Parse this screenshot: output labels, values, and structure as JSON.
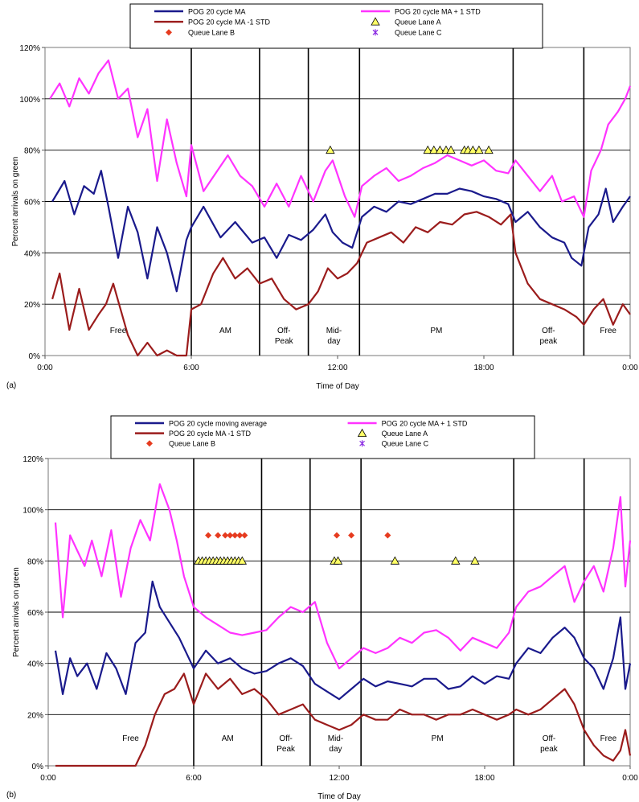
{
  "chart_data": [
    {
      "panel_label": "(a)",
      "type": "line",
      "xlabel": "Time of Day",
      "ylabel": "Percent arrivals on green",
      "xlim": [
        0,
        24
      ],
      "ylim": [
        0,
        120
      ],
      "x_ticks": [
        "0:00",
        "6:00",
        "12:00",
        "18:00",
        "0:00"
      ],
      "y_ticks": [
        "0%",
        "20%",
        "40%",
        "60%",
        "80%",
        "100%",
        "120%"
      ],
      "grid": "horizontal",
      "legend": {
        "position": "top",
        "entries": [
          {
            "label": "POG 20 cycle MA",
            "series": "ma"
          },
          {
            "label": "POG 20 cycle MA + 1 STD",
            "series": "plus"
          },
          {
            "label": "POG 20 cycle MA -1 STD",
            "series": "minus"
          },
          {
            "label": "Queue Lane A",
            "series": "qA"
          },
          {
            "label": "Queue Lane B",
            "series": "qB"
          },
          {
            "label": "Queue Lane C",
            "series": "qC"
          }
        ]
      },
      "period_boundaries": [
        6.0,
        8.8,
        10.8,
        12.9,
        19.2,
        22.1
      ],
      "periods": [
        {
          "label": "Free",
          "x": 3.0
        },
        {
          "label": "AM",
          "x": 7.4
        },
        {
          "label": "Off-\nPeak",
          "x": 9.8
        },
        {
          "label": "Mid-\nday",
          "x": 11.85
        },
        {
          "label": "PM",
          "x": 16.05
        },
        {
          "label": "Off-\npeak",
          "x": 20.65
        },
        {
          "label": "Free",
          "x": 23.1
        }
      ],
      "series": [
        {
          "key": "ma",
          "color": "#1a1a8c",
          "x": [
            0.3,
            0.8,
            1.2,
            1.6,
            2.0,
            2.3,
            2.6,
            3.0,
            3.4,
            3.8,
            4.2,
            4.6,
            5.0,
            5.4,
            5.8,
            6.0,
            6.5,
            7.2,
            7.8,
            8.5,
            9.0,
            9.5,
            10.0,
            10.5,
            11.0,
            11.5,
            11.8,
            12.2,
            12.6,
            13.0,
            13.5,
            14.0,
            14.5,
            15.0,
            15.5,
            16.0,
            16.5,
            17.0,
            17.5,
            18.0,
            18.5,
            19.0,
            19.3,
            19.8,
            20.3,
            20.8,
            21.3,
            21.6,
            22.0,
            22.3,
            22.7,
            23.0,
            23.3,
            23.7,
            24.0
          ],
          "y": [
            60,
            68,
            55,
            66,
            63,
            72,
            58,
            38,
            58,
            48,
            30,
            50,
            40,
            25,
            45,
            50,
            58,
            46,
            52,
            44,
            46,
            38,
            47,
            45,
            49,
            55,
            48,
            44,
            42,
            54,
            58,
            56,
            60,
            59,
            61,
            63,
            63,
            65,
            64,
            62,
            61,
            59,
            52,
            56,
            50,
            46,
            44,
            38,
            35,
            50,
            55,
            65,
            52,
            58,
            62
          ]
        },
        {
          "key": "plus",
          "color": "#ff33ff",
          "x": [
            0.2,
            0.6,
            1.0,
            1.4,
            1.8,
            2.2,
            2.6,
            3.0,
            3.4,
            3.8,
            4.2,
            4.6,
            5.0,
            5.4,
            5.8,
            6.0,
            6.5,
            7.0,
            7.5,
            8.0,
            8.5,
            9.0,
            9.5,
            10.0,
            10.5,
            11.0,
            11.5,
            11.8,
            12.3,
            12.7,
            13.0,
            13.5,
            14.0,
            14.5,
            15.0,
            15.5,
            16.0,
            16.5,
            17.0,
            17.5,
            18.0,
            18.5,
            19.0,
            19.3,
            19.8,
            20.3,
            20.8,
            21.2,
            21.7,
            22.1,
            22.4,
            22.8,
            23.1,
            23.5,
            23.8,
            24.0
          ],
          "y": [
            100,
            106,
            97,
            108,
            102,
            110,
            115,
            100,
            104,
            85,
            96,
            68,
            92,
            75,
            62,
            82,
            64,
            71,
            78,
            70,
            66,
            58,
            67,
            58,
            70,
            60,
            72,
            76,
            62,
            54,
            66,
            70,
            73,
            68,
            70,
            73,
            75,
            78,
            76,
            74,
            76,
            72,
            71,
            76,
            70,
            64,
            70,
            60,
            62,
            54,
            72,
            80,
            90,
            95,
            100,
            105
          ]
        },
        {
          "key": "minus",
          "color": "#9b1c1c",
          "x": [
            0.3,
            0.6,
            1.0,
            1.4,
            1.8,
            2.2,
            2.5,
            2.8,
            3.1,
            3.4,
            3.8,
            4.2,
            4.6,
            5.0,
            5.4,
            5.8,
            6.0,
            6.4,
            6.9,
            7.3,
            7.8,
            8.3,
            8.8,
            9.3,
            9.8,
            10.3,
            10.8,
            11.2,
            11.6,
            12.0,
            12.4,
            12.8,
            13.2,
            13.7,
            14.2,
            14.7,
            15.2,
            15.7,
            16.2,
            16.7,
            17.2,
            17.7,
            18.2,
            18.7,
            19.1,
            19.3,
            19.8,
            20.3,
            20.8,
            21.3,
            21.8,
            22.1,
            22.5,
            22.9,
            23.3,
            23.7,
            24.0
          ],
          "y": [
            22,
            32,
            10,
            26,
            10,
            16,
            20,
            28,
            18,
            8,
            0,
            5,
            0,
            2,
            0,
            0,
            18,
            20,
            32,
            38,
            30,
            34,
            28,
            30,
            22,
            18,
            20,
            25,
            34,
            30,
            32,
            36,
            44,
            46,
            48,
            44,
            50,
            48,
            52,
            51,
            55,
            56,
            54,
            51,
            55,
            40,
            28,
            22,
            20,
            18,
            15,
            12,
            18,
            22,
            12,
            20,
            16
          ]
        }
      ],
      "markers": [
        {
          "key": "qA",
          "shape": "triangle",
          "color": "#ffff66",
          "points": [
            [
              11.7,
              80
            ],
            [
              15.7,
              80
            ],
            [
              15.95,
              80
            ],
            [
              16.2,
              80
            ],
            [
              16.45,
              80
            ],
            [
              16.65,
              80
            ],
            [
              17.2,
              80
            ],
            [
              17.35,
              80
            ],
            [
              17.55,
              80
            ],
            [
              17.8,
              80
            ],
            [
              18.2,
              80
            ]
          ]
        }
      ]
    },
    {
      "panel_label": "(b)",
      "type": "line",
      "xlabel": "Time of Day",
      "ylabel": "Percent arrivals on green",
      "xlim": [
        0,
        24
      ],
      "ylim": [
        0,
        120
      ],
      "x_ticks": [
        "0:00",
        "6:00",
        "12:00",
        "18:00",
        "0:00"
      ],
      "y_ticks": [
        "0%",
        "20%",
        "40%",
        "60%",
        "80%",
        "100%",
        "120%"
      ],
      "grid": "horizontal",
      "legend": {
        "position": "top",
        "entries": [
          {
            "label": "POG 20 cycle moving average",
            "series": "ma"
          },
          {
            "label": "POG 20 cycle MA + 1 STD",
            "series": "plus"
          },
          {
            "label": "POG 20 cycle MA -1 STD",
            "series": "minus"
          },
          {
            "label": "Queue Lane A",
            "series": "qA"
          },
          {
            "label": "Queue Lane B",
            "series": "qB"
          },
          {
            "label": "Queue Lane C",
            "series": "qC"
          }
        ]
      },
      "period_boundaries": [
        6.0,
        8.8,
        10.8,
        12.9,
        19.2,
        22.1
      ],
      "periods": [
        {
          "label": "Free",
          "x": 3.4
        },
        {
          "label": "AM",
          "x": 7.4
        },
        {
          "label": "Off-\nPeak",
          "x": 9.8
        },
        {
          "label": "Mid-\nday",
          "x": 11.85
        },
        {
          "label": "PM",
          "x": 16.05
        },
        {
          "label": "Off-\npeak",
          "x": 20.65
        },
        {
          "label": "Free",
          "x": 23.1
        }
      ],
      "series": [
        {
          "key": "ma",
          "color": "#1a1a8c",
          "x": [
            0.3,
            0.6,
            0.9,
            1.2,
            1.6,
            2.0,
            2.4,
            2.8,
            3.2,
            3.6,
            4.0,
            4.3,
            4.6,
            5.0,
            5.4,
            5.8,
            6.0,
            6.5,
            7.0,
            7.5,
            8.0,
            8.5,
            9.0,
            9.5,
            10.0,
            10.5,
            11.0,
            11.5,
            12.0,
            12.5,
            13.0,
            13.5,
            14.0,
            14.5,
            15.0,
            15.5,
            16.0,
            16.5,
            17.0,
            17.5,
            18.0,
            18.5,
            19.0,
            19.3,
            19.8,
            20.3,
            20.8,
            21.3,
            21.7,
            22.1,
            22.5,
            22.9,
            23.3,
            23.6,
            23.8,
            24.0
          ],
          "y": [
            45,
            28,
            42,
            35,
            40,
            30,
            44,
            38,
            28,
            48,
            52,
            72,
            62,
            56,
            50,
            42,
            38,
            45,
            40,
            42,
            38,
            36,
            37,
            40,
            42,
            39,
            32,
            29,
            26,
            30,
            34,
            31,
            33,
            32,
            31,
            34,
            34,
            30,
            31,
            35,
            32,
            35,
            34,
            40,
            46,
            44,
            50,
            54,
            50,
            42,
            38,
            30,
            42,
            58,
            30,
            40
          ]
        },
        {
          "key": "plus",
          "color": "#ff33ff",
          "x": [
            0.3,
            0.6,
            0.9,
            1.2,
            1.5,
            1.8,
            2.2,
            2.6,
            3.0,
            3.4,
            3.8,
            4.2,
            4.6,
            5.0,
            5.3,
            5.6,
            5.8,
            6.0,
            6.5,
            7.0,
            7.5,
            8.0,
            8.5,
            9.0,
            9.5,
            10.0,
            10.5,
            11.0,
            11.5,
            12.0,
            12.5,
            13.0,
            13.5,
            14.0,
            14.5,
            15.0,
            15.5,
            16.0,
            16.5,
            17.0,
            17.5,
            18.0,
            18.5,
            19.0,
            19.3,
            19.8,
            20.3,
            20.8,
            21.3,
            21.7,
            22.1,
            22.5,
            22.9,
            23.3,
            23.6,
            23.8,
            24.0
          ],
          "y": [
            95,
            58,
            90,
            84,
            78,
            88,
            74,
            92,
            66,
            85,
            96,
            88,
            110,
            100,
            88,
            74,
            68,
            62,
            58,
            55,
            52,
            51,
            52,
            53,
            58,
            62,
            60,
            64,
            48,
            38,
            42,
            46,
            44,
            46,
            50,
            48,
            52,
            53,
            50,
            45,
            50,
            48,
            46,
            52,
            62,
            68,
            70,
            74,
            78,
            64,
            72,
            78,
            68,
            85,
            105,
            70,
            88
          ]
        },
        {
          "key": "minus",
          "color": "#9b1c1c",
          "x": [
            0.3,
            1.0,
            2.0,
            3.0,
            3.6,
            4.0,
            4.4,
            4.8,
            5.2,
            5.6,
            6.0,
            6.5,
            7.0,
            7.5,
            8.0,
            8.5,
            9.0,
            9.5,
            10.0,
            10.5,
            11.0,
            11.5,
            12.0,
            12.5,
            13.0,
            13.5,
            14.0,
            14.5,
            15.0,
            15.5,
            16.0,
            16.5,
            17.0,
            17.5,
            18.0,
            18.5,
            19.0,
            19.3,
            19.8,
            20.3,
            20.8,
            21.3,
            21.7,
            22.1,
            22.5,
            22.9,
            23.3,
            23.6,
            23.8,
            24.0
          ],
          "y": [
            0,
            0,
            0,
            0,
            0,
            8,
            20,
            28,
            30,
            36,
            24,
            36,
            30,
            34,
            28,
            30,
            26,
            20,
            22,
            24,
            18,
            16,
            14,
            16,
            20,
            18,
            18,
            22,
            20,
            20,
            18,
            20,
            20,
            22,
            20,
            18,
            20,
            22,
            20,
            22,
            26,
            30,
            24,
            14,
            8,
            4,
            2,
            6,
            14,
            4
          ]
        }
      ],
      "markers": [
        {
          "key": "qA",
          "shape": "triangle",
          "color": "#ffff66",
          "points": [
            [
              6.2,
              80
            ],
            [
              6.35,
              80
            ],
            [
              6.5,
              80
            ],
            [
              6.65,
              80
            ],
            [
              6.8,
              80
            ],
            [
              6.95,
              80
            ],
            [
              7.1,
              80
            ],
            [
              7.25,
              80
            ],
            [
              7.4,
              80
            ],
            [
              7.55,
              80
            ],
            [
              7.7,
              80
            ],
            [
              7.85,
              80
            ],
            [
              8.0,
              80
            ],
            [
              11.8,
              80
            ],
            [
              11.95,
              80
            ],
            [
              14.3,
              80
            ],
            [
              16.8,
              80
            ],
            [
              17.6,
              80
            ]
          ]
        },
        {
          "key": "qB",
          "shape": "diamond",
          "color": "#e63b1f",
          "points": [
            [
              6.6,
              90
            ],
            [
              7.0,
              90
            ],
            [
              7.3,
              90
            ],
            [
              7.5,
              90
            ],
            [
              7.7,
              90
            ],
            [
              7.9,
              90
            ],
            [
              8.1,
              90
            ],
            [
              11.9,
              90
            ],
            [
              12.5,
              90
            ],
            [
              14.0,
              90
            ]
          ]
        }
      ]
    }
  ]
}
